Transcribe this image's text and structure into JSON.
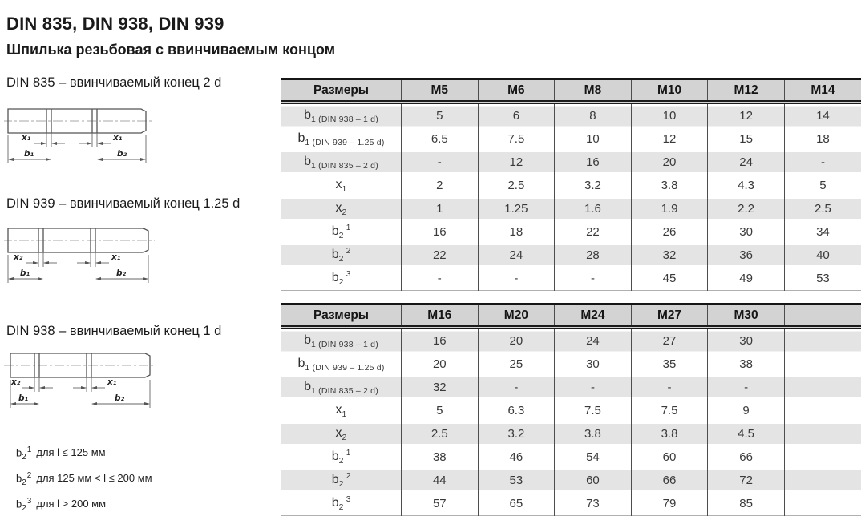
{
  "page": {
    "title": "DIN 835, DIN 938, DIN 939",
    "subtitle": "Шпилька резьбовая с ввинчиваемым концом"
  },
  "colors": {
    "header_bg": "#d3d3d3",
    "row_stripe": "#e4e4e4",
    "border": "#161616"
  },
  "diagrams": [
    {
      "caption": "DIN 835 – ввинчиваемый конец 2 d",
      "labels": {
        "x_left": "x₁",
        "x_right": "x₁",
        "b_left": "b₁",
        "b_right": "b₂"
      }
    },
    {
      "caption": "DIN 939 – ввинчиваемый конец 1.25 d",
      "labels": {
        "x_left": "x₂",
        "x_right": "x₁",
        "b_left": "b₁",
        "b_right": "b₂"
      }
    },
    {
      "caption": "DIN 938 – ввинчиваемый конец 1 d",
      "labels": {
        "x_left": "x₂",
        "x_right": "x₁",
        "b_left": "b₁",
        "b_right": "b₂"
      }
    }
  ],
  "footnotes": [
    {
      "main": "b",
      "sub": "2",
      "sup": "1",
      "text": "для l ≤ 125 мм"
    },
    {
      "main": "b",
      "sub": "2",
      "sup": "2",
      "text": "для 125 мм < l ≤ 200 мм"
    },
    {
      "main": "b",
      "sub": "2",
      "sup": "3",
      "text": "для l > 200 мм"
    }
  ],
  "tables": [
    {
      "name": "sizes-m5-m14",
      "headers": [
        "Размеры",
        "M5",
        "M6",
        "M8",
        "M10",
        "M12",
        "M14"
      ],
      "rows": [
        {
          "label": {
            "main": "b",
            "sub": "1 (DIN 938 – 1 d)",
            "sup": ""
          },
          "cells": [
            "5",
            "6",
            "8",
            "10",
            "12",
            "14"
          ]
        },
        {
          "label": {
            "main": "b",
            "sub": "1 (DIN 939 – 1.25 d)",
            "sup": ""
          },
          "cells": [
            "6.5",
            "7.5",
            "10",
            "12",
            "15",
            "18"
          ]
        },
        {
          "label": {
            "main": "b",
            "sub": "1 (DIN 835 – 2 d)",
            "sup": ""
          },
          "cells": [
            "-",
            "12",
            "16",
            "20",
            "24",
            "-"
          ]
        },
        {
          "label": {
            "main": "x",
            "sub": "1",
            "sup": ""
          },
          "cells": [
            "2",
            "2.5",
            "3.2",
            "3.8",
            "4.3",
            "5"
          ]
        },
        {
          "label": {
            "main": "x",
            "sub": "2",
            "sup": ""
          },
          "cells": [
            "1",
            "1.25",
            "1.6",
            "1.9",
            "2.2",
            "2.5"
          ]
        },
        {
          "label": {
            "main": "b",
            "sub": "2",
            "sup": "1"
          },
          "cells": [
            "16",
            "18",
            "22",
            "26",
            "30",
            "34"
          ]
        },
        {
          "label": {
            "main": "b",
            "sub": "2",
            "sup": "2"
          },
          "cells": [
            "22",
            "24",
            "28",
            "32",
            "36",
            "40"
          ]
        },
        {
          "label": {
            "main": "b",
            "sub": "2",
            "sup": "3"
          },
          "cells": [
            "-",
            "-",
            "-",
            "45",
            "49",
            "53"
          ]
        }
      ]
    },
    {
      "name": "sizes-m16-m30",
      "headers": [
        "Размеры",
        "M16",
        "M20",
        "M24",
        "M27",
        "M30",
        ""
      ],
      "rows": [
        {
          "label": {
            "main": "b",
            "sub": "1 (DIN 938 – 1 d)",
            "sup": ""
          },
          "cells": [
            "16",
            "20",
            "24",
            "27",
            "30",
            ""
          ]
        },
        {
          "label": {
            "main": "b",
            "sub": "1 (DIN 939 – 1.25 d)",
            "sup": ""
          },
          "cells": [
            "20",
            "25",
            "30",
            "35",
            "38",
            ""
          ]
        },
        {
          "label": {
            "main": "b",
            "sub": "1 (DIN 835 – 2 d)",
            "sup": ""
          },
          "cells": [
            "32",
            "-",
            "-",
            "-",
            "-",
            ""
          ]
        },
        {
          "label": {
            "main": "x",
            "sub": "1",
            "sup": ""
          },
          "cells": [
            "5",
            "6.3",
            "7.5",
            "7.5",
            "9",
            ""
          ]
        },
        {
          "label": {
            "main": "x",
            "sub": "2",
            "sup": ""
          },
          "cells": [
            "2.5",
            "3.2",
            "3.8",
            "3.8",
            "4.5",
            ""
          ]
        },
        {
          "label": {
            "main": "b",
            "sub": "2",
            "sup": "1"
          },
          "cells": [
            "38",
            "46",
            "54",
            "60",
            "66",
            ""
          ]
        },
        {
          "label": {
            "main": "b",
            "sub": "2",
            "sup": "2"
          },
          "cells": [
            "44",
            "53",
            "60",
            "66",
            "72",
            ""
          ]
        },
        {
          "label": {
            "main": "b",
            "sub": "2",
            "sup": "3"
          },
          "cells": [
            "57",
            "65",
            "73",
            "79",
            "85",
            ""
          ]
        }
      ]
    }
  ]
}
